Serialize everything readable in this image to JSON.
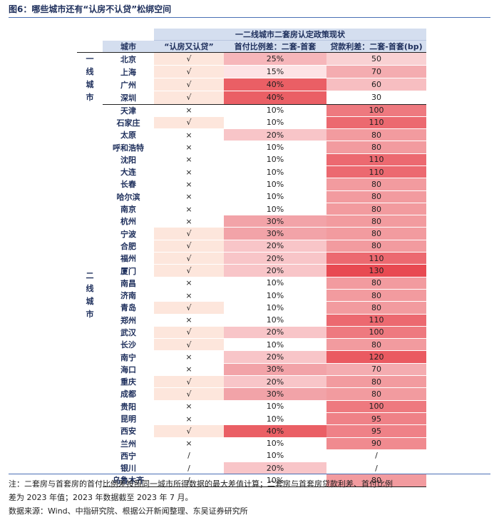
{
  "figure_title": "图6：哪些城市还有“认房不认贷”松绑空间",
  "table": {
    "group_header": "一二线城市二套房认定政策现状",
    "columns": {
      "city": "城市",
      "policy": "“认房又认贷”",
      "down_payment": "首付比例差：二套-首套",
      "rate": "贷款利差：二套-首套(bp)"
    },
    "tiers": [
      {
        "label": "一线城市",
        "rows": [
          {
            "city": "北京",
            "policy": "√",
            "down_payment": "25%",
            "rate": "50"
          },
          {
            "city": "上海",
            "policy": "√",
            "down_payment": "15%",
            "rate": "70"
          },
          {
            "city": "广州",
            "policy": "√",
            "down_payment": "40%",
            "rate": "60"
          },
          {
            "city": "深圳",
            "policy": "√",
            "down_payment": "40%",
            "rate": "30"
          }
        ]
      },
      {
        "label": "二线城市",
        "rows": [
          {
            "city": "天津",
            "policy": "×",
            "down_payment": "10%",
            "rate": "100"
          },
          {
            "city": "石家庄",
            "policy": "√",
            "down_payment": "10%",
            "rate": "110"
          },
          {
            "city": "太原",
            "policy": "×",
            "down_payment": "20%",
            "rate": "80"
          },
          {
            "city": "呼和浩特",
            "policy": "×",
            "down_payment": "10%",
            "rate": "80"
          },
          {
            "city": "沈阳",
            "policy": "×",
            "down_payment": "10%",
            "rate": "110"
          },
          {
            "city": "大连",
            "policy": "×",
            "down_payment": "10%",
            "rate": "110"
          },
          {
            "city": "长春",
            "policy": "×",
            "down_payment": "10%",
            "rate": "80"
          },
          {
            "city": "哈尔滨",
            "policy": "×",
            "down_payment": "10%",
            "rate": "80"
          },
          {
            "city": "南京",
            "policy": "×",
            "down_payment": "10%",
            "rate": "80"
          },
          {
            "city": "杭州",
            "policy": "×",
            "down_payment": "30%",
            "rate": "80"
          },
          {
            "city": "宁波",
            "policy": "√",
            "down_payment": "30%",
            "rate": "80"
          },
          {
            "city": "合肥",
            "policy": "√",
            "down_payment": "20%",
            "rate": "80"
          },
          {
            "city": "福州",
            "policy": "√",
            "down_payment": "20%",
            "rate": "110"
          },
          {
            "city": "厦门",
            "policy": "√",
            "down_payment": "20%",
            "rate": "130"
          },
          {
            "city": "南昌",
            "policy": "×",
            "down_payment": "10%",
            "rate": "80"
          },
          {
            "city": "济南",
            "policy": "×",
            "down_payment": "10%",
            "rate": "80"
          },
          {
            "city": "青岛",
            "policy": "√",
            "down_payment": "10%",
            "rate": "80"
          },
          {
            "city": "郑州",
            "policy": "×",
            "down_payment": "10%",
            "rate": "110"
          },
          {
            "city": "武汉",
            "policy": "√",
            "down_payment": "20%",
            "rate": "100"
          },
          {
            "city": "长沙",
            "policy": "√",
            "down_payment": "10%",
            "rate": "80"
          },
          {
            "city": "南宁",
            "policy": "×",
            "down_payment": "20%",
            "rate": "120"
          },
          {
            "city": "海口",
            "policy": "×",
            "down_payment": "30%",
            "rate": "70"
          },
          {
            "city": "重庆",
            "policy": "√",
            "down_payment": "20%",
            "rate": "80"
          },
          {
            "city": "成都",
            "policy": "√",
            "down_payment": "30%",
            "rate": "80"
          },
          {
            "city": "贵阳",
            "policy": "×",
            "down_payment": "10%",
            "rate": "100"
          },
          {
            "city": "昆明",
            "policy": "×",
            "down_payment": "10%",
            "rate": "95"
          },
          {
            "city": "西安",
            "policy": "√",
            "down_payment": "40%",
            "rate": "95"
          },
          {
            "city": "兰州",
            "policy": "×",
            "down_payment": "10%",
            "rate": "90"
          },
          {
            "city": "西宁",
            "policy": "/",
            "down_payment": "10%",
            "rate": "/"
          },
          {
            "city": "银川",
            "policy": "/",
            "down_payment": "20%",
            "rate": "/"
          },
          {
            "city": "乌鲁木齐",
            "policy": "/",
            "down_payment": "10%",
            "rate": "80"
          }
        ]
      }
    ]
  },
  "colors": {
    "header_bg": "#d4deef",
    "header_text": "#1e2f5c",
    "policy_yes": "#fde6dc",
    "down_10": "#ffffff",
    "down_15": "#fde3e5",
    "down_20": "#f8c5c8",
    "down_25": "#f6b6ba",
    "down_30": "#f2a3a8",
    "down_40": "#ea5f65",
    "rate_low": "#ffffff",
    "rate_high": "#e84a52"
  },
  "notes": [
    "注：二套房与首套房的首付比例差按照同一城市所得数据的最大差值计算；二套房与首套房贷款利差、首付比例",
    "差为 2023 年值；2023 年数据截至 2023 年 7 月。",
    "数据来源：Wind、中指研究院、根据公开新闻整理、东吴证券研究所"
  ]
}
